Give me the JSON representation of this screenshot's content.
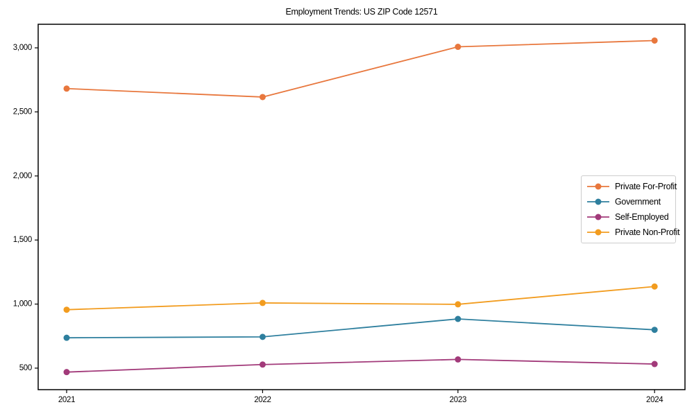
{
  "page": {
    "background": "#ffffff"
  },
  "chart_data": {
    "type": "line",
    "title": "Employment Trends: US ZIP Code 12571",
    "xlabel": "",
    "ylabel": "",
    "categories": [
      "2021",
      "2022",
      "2023",
      "2024"
    ],
    "series": [
      {
        "name": "Private For-Profit",
        "color": "#e8773d",
        "values": [
          2682,
          2616,
          3008,
          3057
        ]
      },
      {
        "name": "Government",
        "color": "#2e7f9e",
        "values": [
          737,
          744,
          884,
          799
        ]
      },
      {
        "name": "Self-Employed",
        "color": "#a23a7a",
        "values": [
          469,
          528,
          568,
          532
        ]
      },
      {
        "name": "Private Non-Profit",
        "color": "#f29c1f",
        "values": [
          956,
          1009,
          998,
          1137
        ]
      }
    ],
    "yticks": [
      500,
      1000,
      1500,
      2000,
      2500,
      3000
    ],
    "ytick_labels": [
      "500",
      "1,000",
      "1,500",
      "2,000",
      "2,500",
      "3,000"
    ],
    "ylim": [
      332,
      3184
    ],
    "grid": false,
    "legend_position": "center-right",
    "marker": "circle",
    "frame_color": "#000000",
    "axis_text_color": "#000000"
  }
}
